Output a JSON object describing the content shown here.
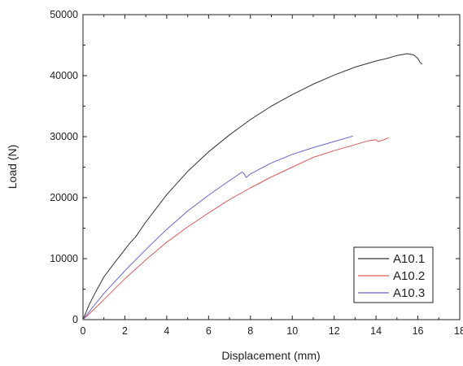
{
  "chart_data": {
    "type": "line",
    "title": "",
    "xlabel": "Displacement (mm)",
    "ylabel": "Load (N)",
    "xlim": [
      0,
      18
    ],
    "ylim": [
      0,
      50000
    ],
    "xticks": [
      0,
      2,
      4,
      6,
      8,
      10,
      12,
      14,
      16,
      18
    ],
    "yticks": [
      0,
      10000,
      20000,
      30000,
      40000,
      50000
    ],
    "grid": false,
    "legend_position": "bottom-right",
    "series": [
      {
        "name": "A10.1",
        "color": "#333333",
        "x": [
          0,
          0.3,
          0.6,
          1.0,
          1.5,
          2.0,
          2.3,
          2.5,
          3.0,
          4.0,
          5.0,
          6.0,
          7.0,
          8.0,
          9.0,
          10.0,
          11.0,
          12.0,
          13.0,
          14.0,
          14.5,
          15.0,
          15.5,
          15.8,
          16.0,
          16.1,
          16.2
        ],
        "y": [
          0,
          2500,
          4500,
          7000,
          9300,
          11500,
          12800,
          13500,
          16000,
          20500,
          24300,
          27500,
          30300,
          32800,
          35000,
          36900,
          38600,
          40100,
          41400,
          42400,
          42800,
          43300,
          43600,
          43400,
          42800,
          42200,
          41900
        ]
      },
      {
        "name": "A10.2",
        "color": "#e05a5a",
        "x": [
          0,
          0.5,
          1.0,
          2.0,
          3.0,
          4.0,
          5.0,
          6.0,
          7.0,
          8.0,
          9.0,
          10.0,
          11.0,
          12.0,
          13.0,
          13.6,
          14.0,
          14.1,
          14.3,
          14.6
        ],
        "y": [
          0,
          1600,
          3300,
          6700,
          9800,
          12700,
          15200,
          17500,
          19700,
          21600,
          23400,
          25000,
          26600,
          27700,
          28700,
          29300,
          29500,
          29200,
          29400,
          29800
        ]
      },
      {
        "name": "A10.3",
        "color": "#6666cc",
        "x": [
          0,
          0.5,
          1.0,
          2.0,
          3.0,
          4.0,
          5.0,
          6.0,
          7.0,
          7.6,
          7.7,
          7.8,
          7.9,
          8.0,
          9.0,
          10.0,
          11.0,
          12.0,
          12.9
        ],
        "y": [
          0,
          2200,
          4300,
          8000,
          11500,
          14800,
          17800,
          20400,
          22800,
          24200,
          23900,
          23300,
          23600,
          23900,
          25700,
          27100,
          28200,
          29200,
          30100
        ]
      }
    ]
  }
}
